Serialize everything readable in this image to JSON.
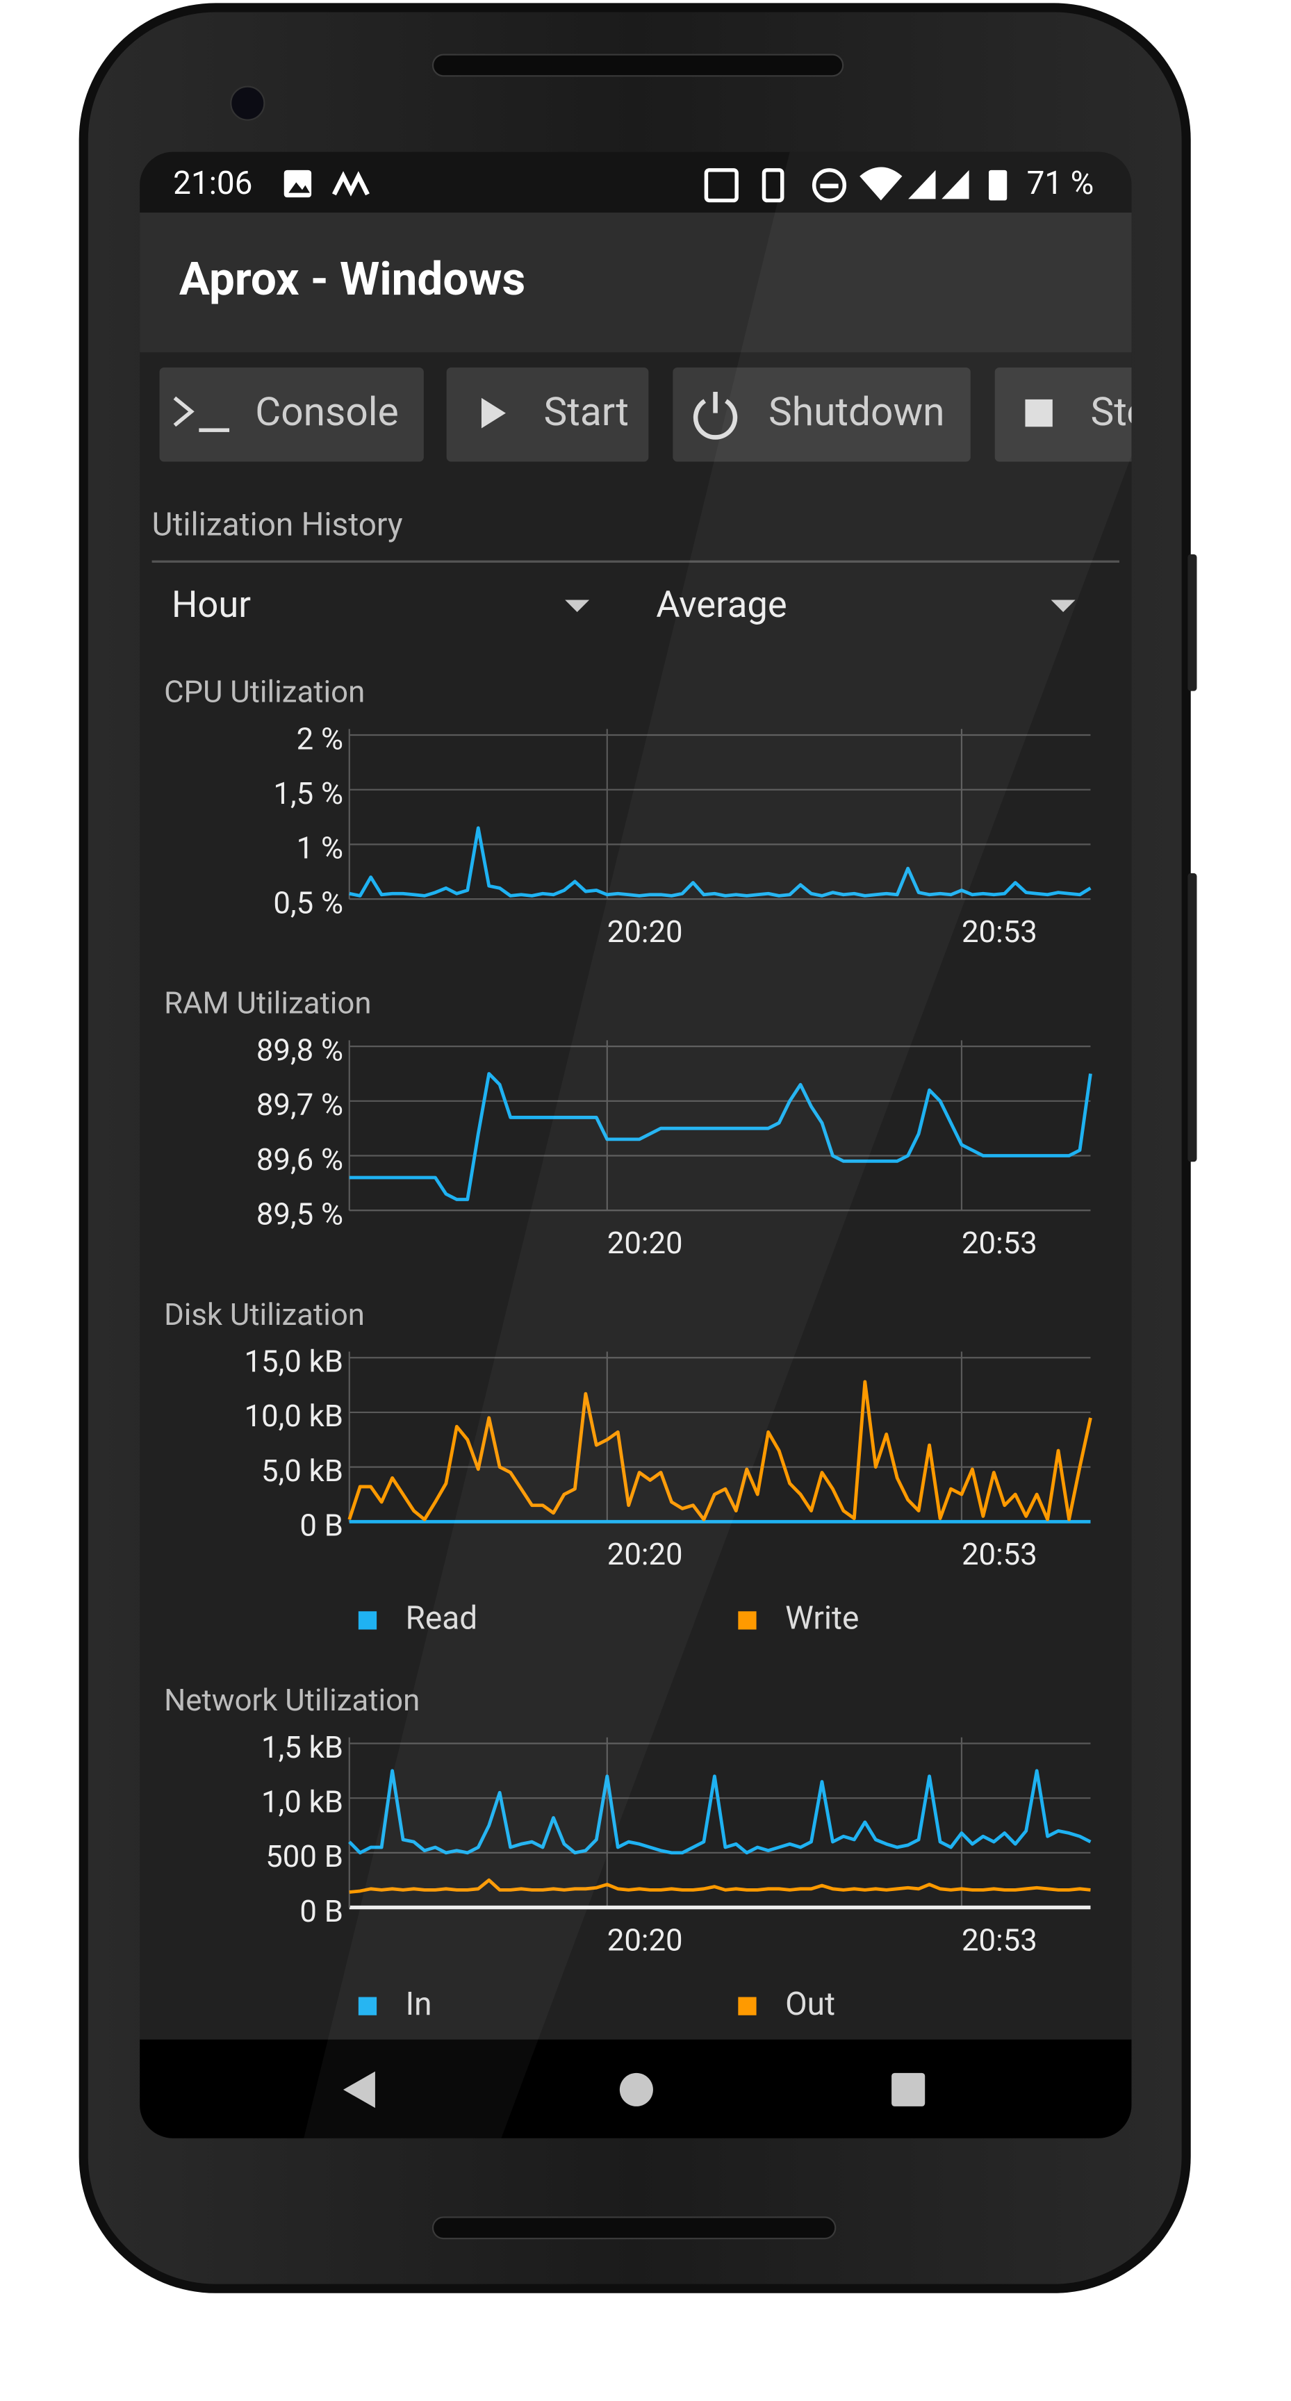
{
  "status_bar": {
    "time": "21:06",
    "battery": "71 %"
  },
  "app_bar": {
    "title": "Aprox - Windows"
  },
  "actions": [
    "Console",
    "Start",
    "Shutdown",
    "Stop"
  ],
  "section": {
    "title": "Utilization History",
    "period": "Hour",
    "aggregation": "Average"
  },
  "chart_data": [
    {
      "type": "line",
      "title": "CPU Utilization",
      "x": [
        1196,
        1197,
        1198,
        1199,
        1200,
        1201,
        1202,
        1203,
        1204,
        1205,
        1206,
        1207,
        1208,
        1209,
        1210,
        1211,
        1212,
        1213,
        1214,
        1215,
        1216,
        1217,
        1218,
        1219,
        1220,
        1221,
        1222,
        1223,
        1224,
        1225,
        1226,
        1227,
        1228,
        1229,
        1230,
        1231,
        1232,
        1233,
        1234,
        1235,
        1236,
        1237,
        1238,
        1239,
        1240,
        1241,
        1242,
        1243,
        1244,
        1245,
        1246,
        1247,
        1248,
        1249,
        1250,
        1251,
        1252,
        1253,
        1254,
        1255,
        1256,
        1257,
        1258,
        1259,
        1260,
        1261,
        1262,
        1263,
        1264,
        1265
      ],
      "xlim": [
        1196,
        1265
      ],
      "xticks": [
        {
          "value": 1220,
          "label": "20:20"
        },
        {
          "value": 1253,
          "label": "20:53"
        }
      ],
      "ylim": [
        0.5,
        2
      ],
      "yticks": [
        {
          "value": 0.5,
          "label": "0,5 %"
        },
        {
          "value": 1,
          "label": "1 %"
        },
        {
          "value": 1.5,
          "label": "1,5 %"
        },
        {
          "value": 2,
          "label": "2 %"
        }
      ],
      "grid": true,
      "series": [
        {
          "color": "#1fb2f2",
          "values": [
            0.55,
            0.53,
            0.7,
            0.54,
            0.55,
            0.55,
            0.54,
            0.53,
            0.56,
            0.6,
            0.55,
            0.58,
            1.15,
            0.62,
            0.6,
            0.53,
            0.54,
            0.53,
            0.55,
            0.54,
            0.58,
            0.66,
            0.57,
            0.58,
            0.54,
            0.55,
            0.54,
            0.53,
            0.54,
            0.54,
            0.53,
            0.55,
            0.65,
            0.54,
            0.55,
            0.53,
            0.54,
            0.53,
            0.54,
            0.55,
            0.53,
            0.54,
            0.63,
            0.55,
            0.53,
            0.56,
            0.54,
            0.55,
            0.53,
            0.54,
            0.55,
            0.54,
            0.78,
            0.56,
            0.54,
            0.55,
            0.54,
            0.58,
            0.54,
            0.55,
            0.54,
            0.55,
            0.65,
            0.56,
            0.55,
            0.54,
            0.56,
            0.55,
            0.54,
            0.6
          ]
        }
      ]
    },
    {
      "type": "line",
      "title": "RAM Utilization",
      "x": [
        1196,
        1197,
        1198,
        1199,
        1200,
        1201,
        1202,
        1203,
        1204,
        1205,
        1206,
        1207,
        1208,
        1209,
        1210,
        1211,
        1212,
        1213,
        1214,
        1215,
        1216,
        1217,
        1218,
        1219,
        1220,
        1221,
        1222,
        1223,
        1224,
        1225,
        1226,
        1227,
        1228,
        1229,
        1230,
        1231,
        1232,
        1233,
        1234,
        1235,
        1236,
        1237,
        1238,
        1239,
        1240,
        1241,
        1242,
        1243,
        1244,
        1245,
        1246,
        1247,
        1248,
        1249,
        1250,
        1251,
        1252,
        1253,
        1254,
        1255,
        1256,
        1257,
        1258,
        1259,
        1260,
        1261,
        1262,
        1263,
        1264,
        1265
      ],
      "xlim": [
        1196,
        1265
      ],
      "xticks": [
        {
          "value": 1220,
          "label": "20:20"
        },
        {
          "value": 1253,
          "label": "20:53"
        }
      ],
      "ylim": [
        89.5,
        89.8
      ],
      "yticks": [
        {
          "value": 89.5,
          "label": "89,5 %"
        },
        {
          "value": 89.6,
          "label": "89,6 %"
        },
        {
          "value": 89.7,
          "label": "89,7 %"
        },
        {
          "value": 89.8,
          "label": "89,8 %"
        }
      ],
      "grid": true,
      "series": [
        {
          "color": "#1fb2f2",
          "values": [
            89.56,
            89.56,
            89.56,
            89.56,
            89.56,
            89.56,
            89.56,
            89.56,
            89.56,
            89.53,
            89.52,
            89.52,
            89.64,
            89.75,
            89.73,
            89.67,
            89.67,
            89.67,
            89.67,
            89.67,
            89.67,
            89.67,
            89.67,
            89.67,
            89.63,
            89.63,
            89.63,
            89.63,
            89.64,
            89.65,
            89.65,
            89.65,
            89.65,
            89.65,
            89.65,
            89.65,
            89.65,
            89.65,
            89.65,
            89.65,
            89.66,
            89.7,
            89.73,
            89.69,
            89.66,
            89.6,
            89.59,
            89.59,
            89.59,
            89.59,
            89.59,
            89.59,
            89.6,
            89.64,
            89.72,
            89.7,
            89.66,
            89.62,
            89.61,
            89.6,
            89.6,
            89.6,
            89.6,
            89.6,
            89.6,
            89.6,
            89.6,
            89.6,
            89.61,
            89.75
          ]
        }
      ]
    },
    {
      "type": "line",
      "title": "Disk Utilization",
      "x": [
        1196,
        1197,
        1198,
        1199,
        1200,
        1201,
        1202,
        1203,
        1204,
        1205,
        1206,
        1207,
        1208,
        1209,
        1210,
        1211,
        1212,
        1213,
        1214,
        1215,
        1216,
        1217,
        1218,
        1219,
        1220,
        1221,
        1222,
        1223,
        1224,
        1225,
        1226,
        1227,
        1228,
        1229,
        1230,
        1231,
        1232,
        1233,
        1234,
        1235,
        1236,
        1237,
        1238,
        1239,
        1240,
        1241,
        1242,
        1243,
        1244,
        1245,
        1246,
        1247,
        1248,
        1249,
        1250,
        1251,
        1252,
        1253,
        1254,
        1255,
        1256,
        1257,
        1258,
        1259,
        1260,
        1261,
        1262,
        1263,
        1264,
        1265
      ],
      "xlim": [
        1196,
        1265
      ],
      "xticks": [
        {
          "value": 1220,
          "label": "20:20"
        },
        {
          "value": 1253,
          "label": "20:53"
        }
      ],
      "ylim": [
        0,
        15
      ],
      "yticks": [
        {
          "value": 0,
          "label": "0 B"
        },
        {
          "value": 5,
          "label": "5,0 kB"
        },
        {
          "value": 10,
          "label": "10,0 kB"
        },
        {
          "value": 15,
          "label": "15,0 kB"
        }
      ],
      "grid": true,
      "series": [
        {
          "name": "Read",
          "color": "#1fb2f2",
          "values": [
            0,
            0,
            0,
            0,
            0,
            0,
            0,
            0,
            0,
            0,
            0,
            0,
            0,
            0,
            0,
            0,
            0,
            0,
            0,
            0,
            0,
            0,
            0,
            0,
            0,
            0,
            0,
            0,
            0,
            0,
            0,
            0,
            0,
            0,
            0,
            0,
            0,
            0,
            0,
            0,
            0,
            0,
            0,
            0,
            0,
            0,
            0,
            0,
            0,
            0,
            0,
            0,
            0,
            0,
            0,
            0,
            0,
            0,
            0,
            0,
            0,
            0,
            0,
            0,
            0,
            0,
            0,
            0,
            0,
            0
          ]
        },
        {
          "name": "Write",
          "color": "#ff9a00",
          "values": [
            0.2,
            3.2,
            3.2,
            1.8,
            4,
            2.5,
            1,
            0.2,
            1.8,
            3.5,
            8.7,
            7.5,
            4.8,
            9.5,
            5,
            4.5,
            3,
            1.5,
            1.5,
            0.8,
            2.5,
            3,
            11.7,
            7,
            7.5,
            8.2,
            1.5,
            4.5,
            3.8,
            4.5,
            1.8,
            1.2,
            1.5,
            0.2,
            2.5,
            3,
            1,
            4.8,
            2.5,
            8.2,
            6.5,
            3.5,
            2.5,
            1,
            4.5,
            3,
            1,
            0.3,
            12.8,
            5,
            8,
            4,
            2,
            1,
            7,
            0.3,
            3,
            2.5,
            4.8,
            0.5,
            4.5,
            1.5,
            2.5,
            0.5,
            2.5,
            0.2,
            6.5,
            0.2,
            5,
            9.5
          ]
        }
      ]
    },
    {
      "type": "line",
      "title": "Network Utilization",
      "x": [
        1196,
        1197,
        1198,
        1199,
        1200,
        1201,
        1202,
        1203,
        1204,
        1205,
        1206,
        1207,
        1208,
        1209,
        1210,
        1211,
        1212,
        1213,
        1214,
        1215,
        1216,
        1217,
        1218,
        1219,
        1220,
        1221,
        1222,
        1223,
        1224,
        1225,
        1226,
        1227,
        1228,
        1229,
        1230,
        1231,
        1232,
        1233,
        1234,
        1235,
        1236,
        1237,
        1238,
        1239,
        1240,
        1241,
        1242,
        1243,
        1244,
        1245,
        1246,
        1247,
        1248,
        1249,
        1250,
        1251,
        1252,
        1253,
        1254,
        1255,
        1256,
        1257,
        1258,
        1259,
        1260,
        1261,
        1262,
        1263,
        1264,
        1265
      ],
      "xlim": [
        1196,
        1265
      ],
      "xticks": [
        {
          "value": 1220,
          "label": "20:20"
        },
        {
          "value": 1253,
          "label": "20:53"
        }
      ],
      "ylim": [
        0,
        1.5
      ],
      "yticks": [
        {
          "value": 0,
          "label": "0 B"
        },
        {
          "value": 0.5,
          "label": "500 B"
        },
        {
          "value": 1,
          "label": "1,0 kB"
        },
        {
          "value": 1.5,
          "label": "1,5 kB"
        }
      ],
      "grid": true,
      "series": [
        {
          "name": "In",
          "color": "#1fb2f2",
          "values": [
            0.6,
            0.5,
            0.55,
            0.55,
            1.25,
            0.62,
            0.6,
            0.52,
            0.55,
            0.5,
            0.52,
            0.5,
            0.55,
            0.75,
            1.05,
            0.55,
            0.58,
            0.6,
            0.55,
            0.82,
            0.58,
            0.5,
            0.52,
            0.62,
            1.2,
            0.55,
            0.6,
            0.58,
            0.55,
            0.52,
            0.5,
            0.5,
            0.55,
            0.6,
            1.2,
            0.55,
            0.58,
            0.5,
            0.55,
            0.52,
            0.55,
            0.58,
            0.55,
            0.6,
            1.15,
            0.6,
            0.65,
            0.62,
            0.78,
            0.62,
            0.58,
            0.55,
            0.57,
            0.62,
            1.2,
            0.6,
            0.55,
            0.68,
            0.58,
            0.65,
            0.6,
            0.68,
            0.58,
            0.7,
            1.25,
            0.65,
            0.7,
            0.68,
            0.65,
            0.6
          ]
        },
        {
          "name": "Out",
          "color": "#ff9a00",
          "values": [
            0.14,
            0.15,
            0.17,
            0.16,
            0.17,
            0.16,
            0.17,
            0.16,
            0.16,
            0.17,
            0.16,
            0.16,
            0.17,
            0.25,
            0.16,
            0.16,
            0.17,
            0.16,
            0.16,
            0.17,
            0.16,
            0.17,
            0.17,
            0.18,
            0.21,
            0.17,
            0.16,
            0.17,
            0.16,
            0.16,
            0.17,
            0.16,
            0.16,
            0.17,
            0.19,
            0.16,
            0.17,
            0.16,
            0.16,
            0.17,
            0.17,
            0.16,
            0.17,
            0.17,
            0.2,
            0.17,
            0.16,
            0.17,
            0.16,
            0.17,
            0.16,
            0.17,
            0.18,
            0.17,
            0.21,
            0.17,
            0.16,
            0.17,
            0.16,
            0.16,
            0.17,
            0.16,
            0.16,
            0.17,
            0.18,
            0.17,
            0.16,
            0.16,
            0.17,
            0.16
          ]
        }
      ]
    }
  ]
}
